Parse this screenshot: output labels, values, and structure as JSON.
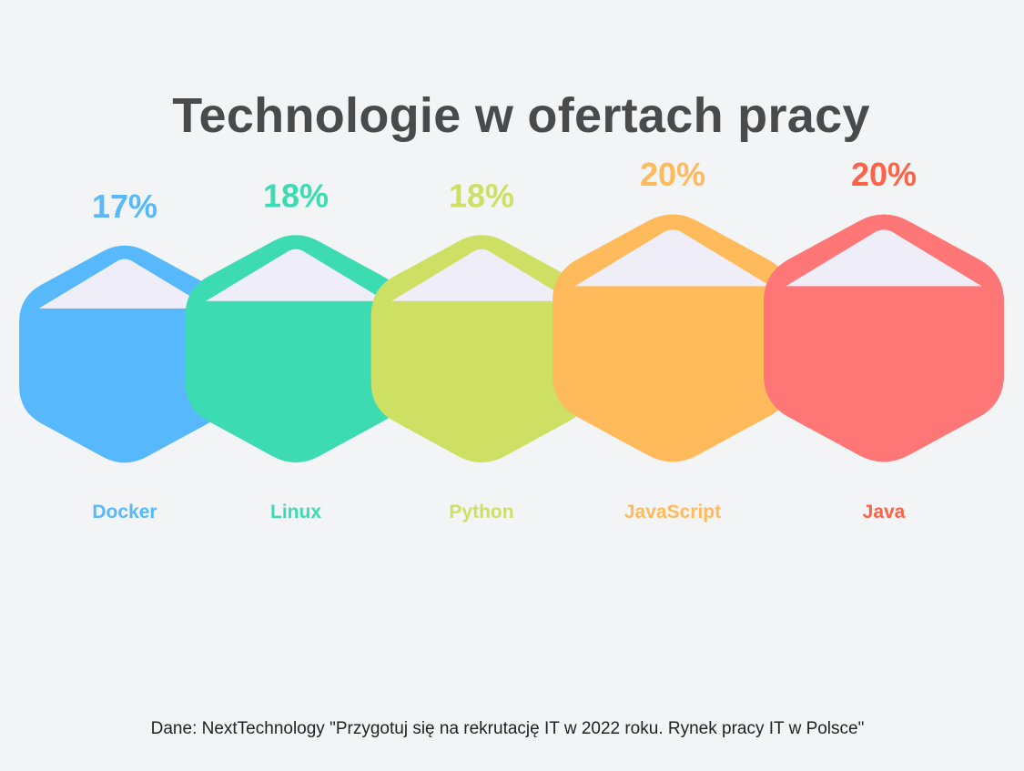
{
  "title": "Technologie w ofertach pracy",
  "source": "Dane: NextTechnology \"Przygotuj się na rekrutację IT w 2022 roku. Rynek pracy IT w Polsce\"",
  "chart_data": {
    "type": "bar",
    "title": "Technologie w ofertach pracy",
    "categories": [
      "Docker",
      "Linux",
      "Python",
      "JavaScript",
      "Java"
    ],
    "values": [
      17,
      18,
      18,
      20,
      20
    ],
    "value_labels": [
      "17%",
      "18%",
      "18%",
      "20%",
      "20%"
    ],
    "unit": "%",
    "legend": "none",
    "grid": false,
    "colors": [
      "#57b8fb",
      "#3ddbb1",
      "#cde064",
      "#ffba5c",
      "#ff7676"
    ],
    "label_colors": [
      "#57b8fb",
      "#3ddbb1",
      "#cde064",
      "#ffba5c",
      "#ff6347"
    ],
    "cap_color": "#eeedf8"
  }
}
